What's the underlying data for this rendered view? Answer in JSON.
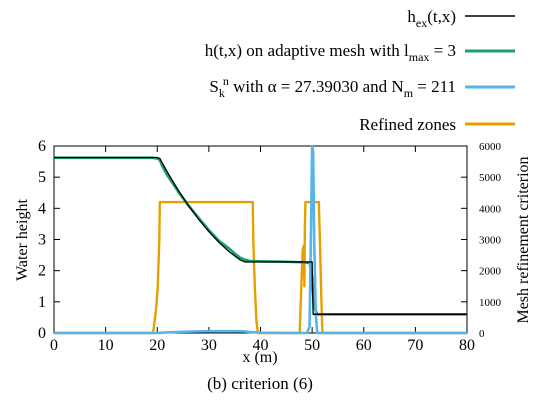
{
  "chart_data": {
    "type": "line",
    "caption": "(b)  criterion (6)",
    "xlabel": "x (m)",
    "ylabel": "Water height",
    "y2label": "Mesh refinement criterion",
    "xlim": [
      0,
      80
    ],
    "ylim": [
      0,
      6
    ],
    "y2lim": [
      0,
      6000
    ],
    "x_ticks": [
      "0",
      "10",
      "20",
      "30",
      "40",
      "50",
      "60",
      "70",
      "80"
    ],
    "y_ticks": [
      "0",
      "1",
      "2",
      "3",
      "4",
      "5",
      "6"
    ],
    "y2_ticks": [
      "0",
      "1000",
      "2000",
      "3000",
      "4000",
      "5000",
      "6000"
    ],
    "legend": {
      "exact": {
        "main": "h",
        "sub": "ex",
        "tail": "(t,x)"
      },
      "adaptive": {
        "main": "h(t,x) on adaptive mesh with l",
        "sub": "max",
        "tail": " =  3"
      },
      "criterion": {
        "main": "S",
        "sub": "k",
        "sup": "n",
        "mid": " with α =  27.39030 and N",
        "sub2": "m",
        "tail": " = 211"
      },
      "refined": {
        "main": "Refined zones"
      }
    },
    "series": [
      {
        "name": "h_ex(t,x)",
        "axis": "y",
        "color": "#000000",
        "x": [
          0,
          20,
          20.5,
          21,
          22,
          24,
          26,
          28,
          30,
          32,
          34,
          36,
          37,
          37.8,
          38,
          40,
          42,
          44,
          46,
          48,
          50,
          50.1,
          50.2,
          80
        ],
        "y": [
          5.63,
          5.63,
          5.6,
          5.45,
          5.15,
          4.6,
          4.1,
          3.65,
          3.25,
          2.9,
          2.6,
          2.35,
          2.28,
          2.28,
          2.28,
          2.28,
          2.28,
          2.28,
          2.28,
          2.28,
          2.28,
          1.2,
          0.6,
          0.6
        ]
      },
      {
        "name": "h(t,x) on adaptive mesh with l_max = 3",
        "axis": "y",
        "color": "#1a9e6e",
        "x": [
          0,
          19,
          20,
          20.5,
          21,
          22,
          24,
          26,
          28,
          30,
          32,
          34,
          35,
          36,
          37,
          38,
          40,
          44,
          48,
          49.5,
          50,
          50.2,
          50.5,
          51,
          80
        ],
        "y": [
          5.62,
          5.62,
          5.6,
          5.55,
          5.35,
          5.05,
          4.55,
          4.1,
          3.7,
          3.3,
          2.95,
          2.7,
          2.55,
          2.42,
          2.35,
          2.31,
          2.3,
          2.29,
          2.27,
          2.25,
          1.8,
          1.2,
          0.8,
          0.6,
          0.6
        ]
      },
      {
        "name": "S_k^n",
        "axis": "y2",
        "color": "#56b4e9",
        "x": [
          0,
          20,
          22,
          25,
          30,
          35,
          37,
          38,
          40,
          45,
          48,
          49,
          49.5,
          49.8,
          50,
          50.2,
          50.4,
          50.7,
          51,
          52,
          80
        ],
        "y": [
          0,
          0,
          20,
          40,
          60,
          60,
          50,
          30,
          10,
          0,
          0,
          0,
          200,
          3500,
          6000,
          5800,
          3000,
          600,
          0,
          0,
          0
        ]
      },
      {
        "name": "Refined zones",
        "axis": "y2",
        "color": "#e69f00",
        "x": [
          0,
          19.2,
          19.8,
          20.1,
          20.4,
          20.5,
          38.5,
          38.6,
          38.9,
          39.2,
          39.5,
          47.6,
          47.9,
          48.2,
          48.4,
          48.5,
          48.6,
          48.7,
          48.8,
          51.3,
          51.5,
          51.8,
          52,
          80
        ],
        "y": [
          0,
          0,
          800,
          1500,
          3000,
          4200,
          4200,
          3000,
          1500,
          400,
          0,
          0,
          1500,
          2700,
          2800,
          1500,
          3500,
          4200,
          4200,
          4200,
          3000,
          1000,
          0,
          0
        ]
      }
    ]
  }
}
